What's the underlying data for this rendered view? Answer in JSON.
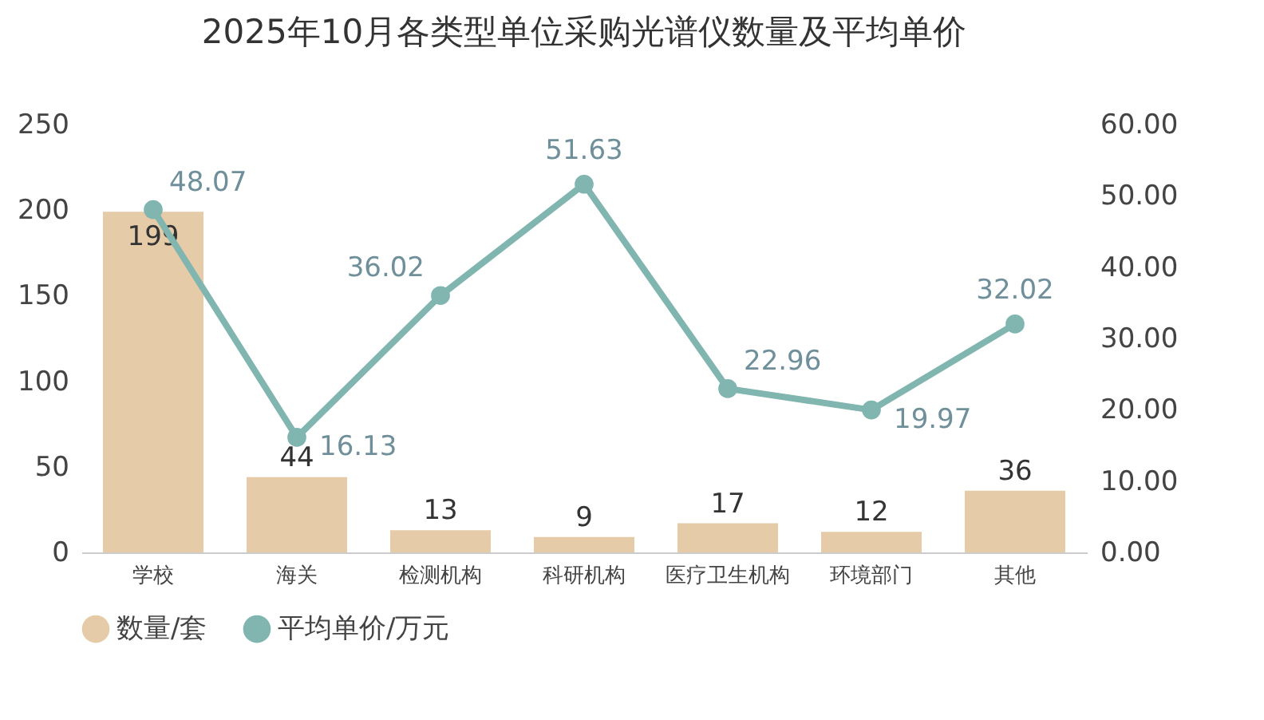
{
  "chart_data": {
    "type": "bar",
    "title": "2025年10月各类型单位采购光谱仪数量及平均单价",
    "categories": [
      "学校",
      "海关",
      "检测机构",
      "科研机构",
      "医疗卫生机构",
      "环境部门",
      "其他"
    ],
    "series": [
      {
        "name": "数量/套",
        "color": "#e6cba8",
        "values": [
          199,
          44,
          13,
          9,
          17,
          12,
          36
        ]
      },
      {
        "name": "平均单价/万元",
        "type": "line",
        "axis": "y2",
        "color": "#80b5b0",
        "marker": "circle",
        "values": [
          48.07,
          16.13,
          36.02,
          51.63,
          22.96,
          19.97,
          32.02
        ]
      }
    ],
    "ylim": [
      0,
      250
    ],
    "yticks": [
      0,
      50,
      100,
      150,
      200,
      250
    ],
    "y2lim": [
      0,
      60
    ],
    "y2ticks": [
      {
        "value": 0,
        "label": "0.00"
      },
      {
        "value": 10,
        "label": "10.00"
      },
      {
        "value": 20,
        "label": "20.00"
      },
      {
        "value": 30,
        "label": "30.00"
      },
      {
        "value": 40,
        "label": "40.00"
      },
      {
        "value": 50,
        "label": "50.00"
      },
      {
        "value": 60,
        "label": "60.00"
      }
    ],
    "data_labels": true,
    "grid": false,
    "legend": "bottom"
  }
}
